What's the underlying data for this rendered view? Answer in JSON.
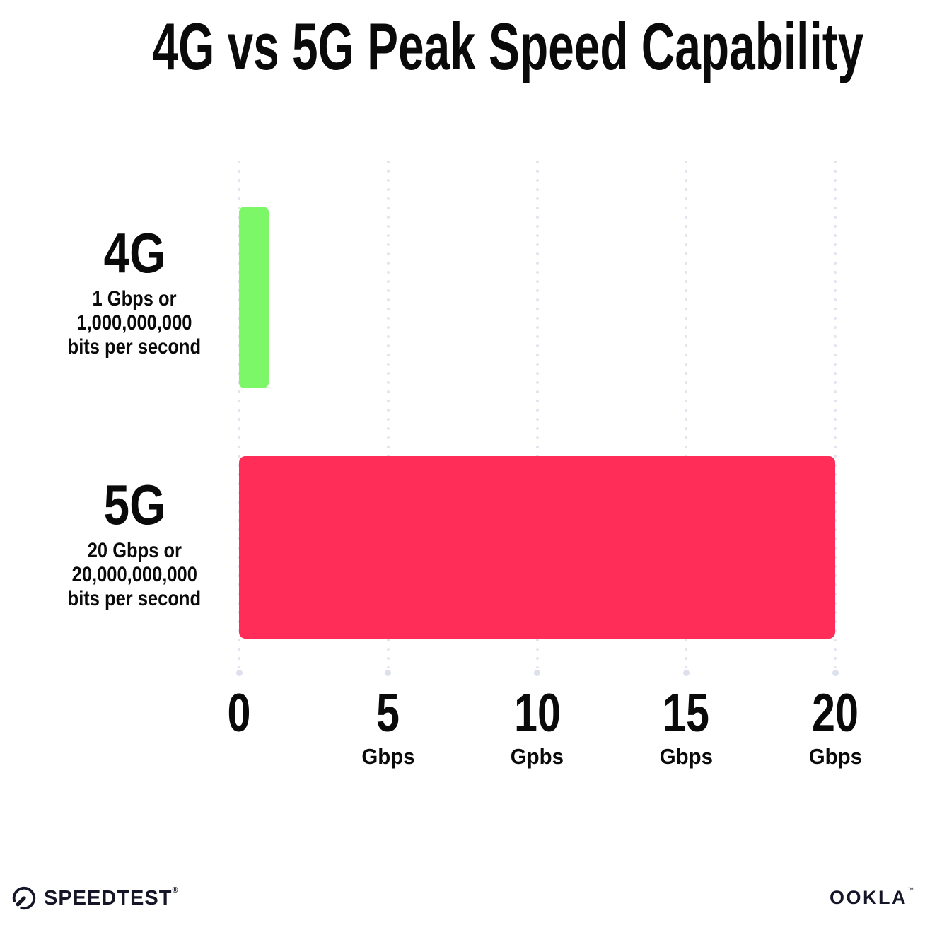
{
  "page": {
    "title": "4G vs 5G Peak Speed Capability"
  },
  "chart_data": {
    "type": "bar",
    "orientation": "horizontal",
    "title": "4G vs 5G Peak Speed Capability",
    "categories": [
      "4G",
      "5G"
    ],
    "values": [
      1,
      20
    ],
    "value_unit": "Gbps",
    "xlabel": "",
    "ylabel": "",
    "xlim": [
      0,
      20
    ],
    "xticks": [
      0,
      5,
      10,
      15,
      20
    ],
    "xtick_labels": [
      "0",
      "5 Gbps",
      "10 Gpbs",
      "15 Gbps",
      "20 Gbps"
    ],
    "grid": "vertical-dotted",
    "legend": false,
    "bar_colors": [
      "#7CF768",
      "#FF2D58"
    ],
    "annotations": [
      "4G: 1 Gbps or 1,000,000,000 bits per second",
      "5G: 20 Gbps or 20,000,000,000 bits per second"
    ]
  },
  "rows": [
    {
      "label": "4G",
      "sublines": [
        "1 Gbps or",
        "1,000,000,000",
        "bits per second"
      ],
      "value": 1,
      "width_pct": 5,
      "color": "#7CF768"
    },
    {
      "label": "5G",
      "sublines": [
        "20 Gbps or",
        "20,000,000,000",
        "bits per second"
      ],
      "value": 20,
      "width_pct": 100,
      "color": "#FF2D58"
    }
  ],
  "x_axis": {
    "ticks": [
      {
        "value": "0",
        "unit": ""
      },
      {
        "value": "5",
        "unit": "Gbps"
      },
      {
        "value": "10",
        "unit": "Gpbs"
      },
      {
        "value": "15",
        "unit": "Gbps"
      },
      {
        "value": "20",
        "unit": "Gbps"
      }
    ]
  },
  "footer": {
    "speedtest_label": "SPEEDTEST",
    "speedtest_mark": "®",
    "ookla_label": "OOKLA",
    "ookla_mark": "™",
    "logo_color": "#141526",
    "grid_dot_color": "#e1e3ef"
  }
}
